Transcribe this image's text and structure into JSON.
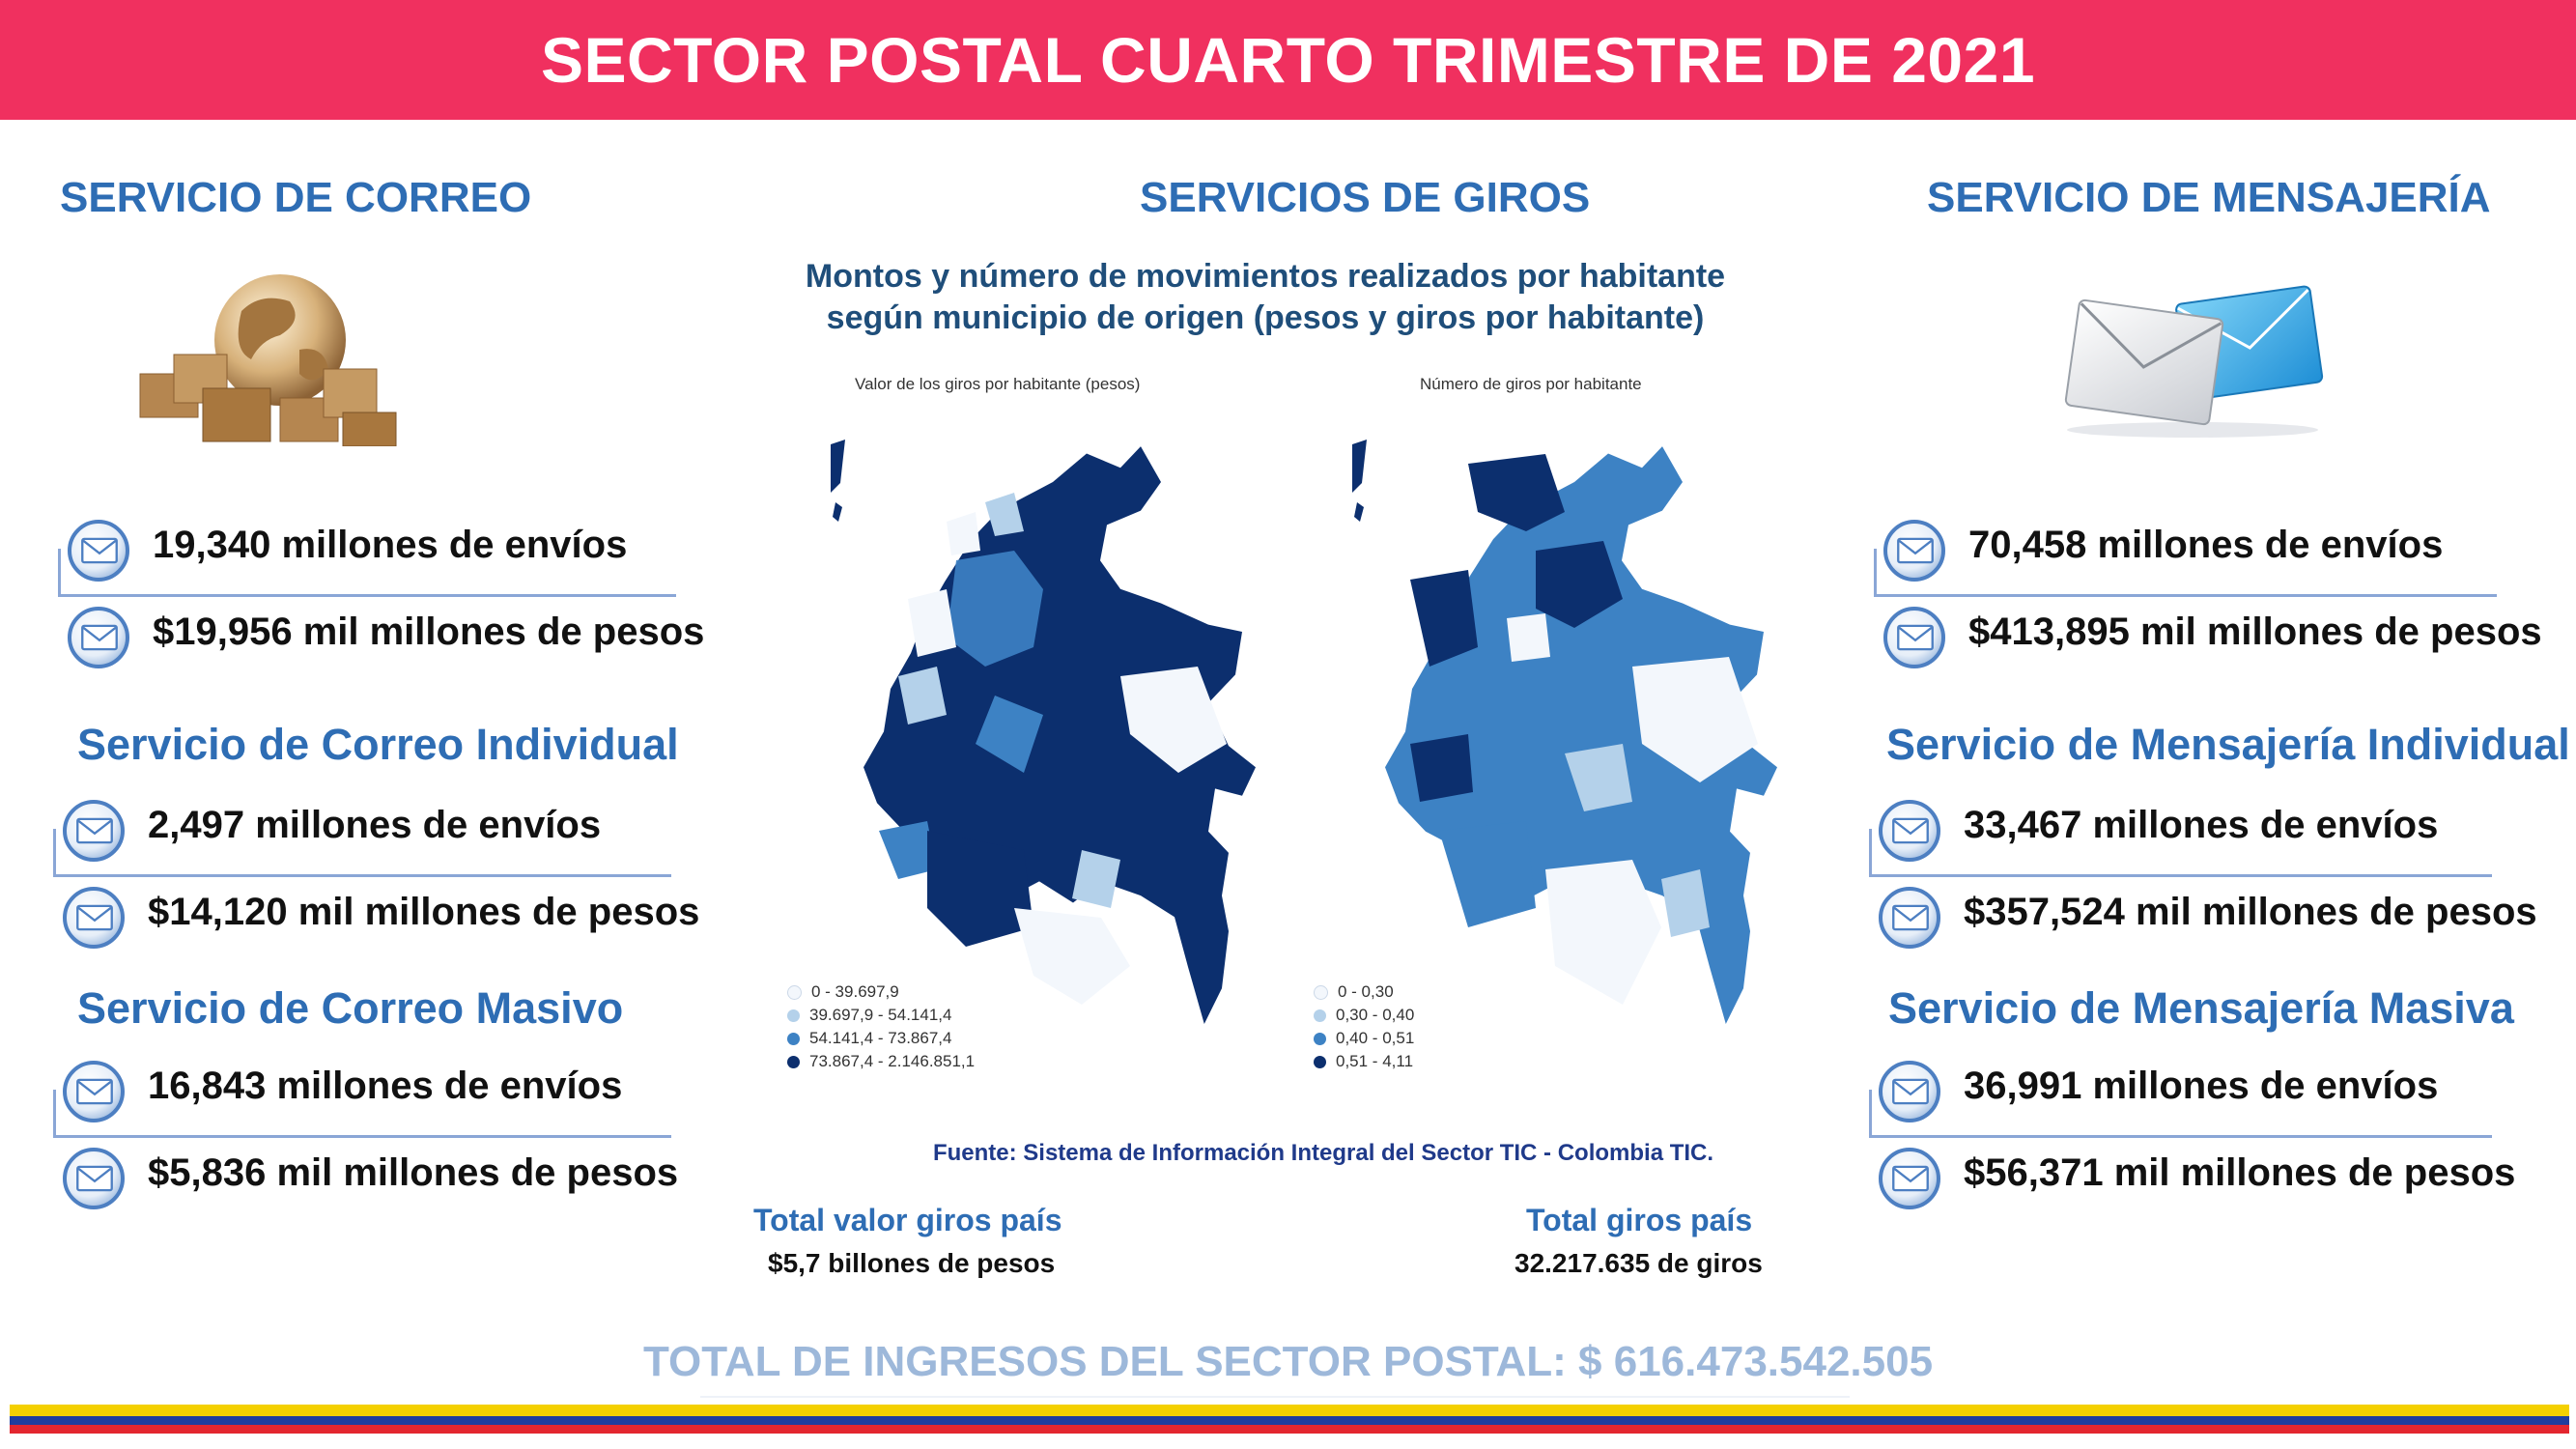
{
  "header": {
    "title": "SECTOR POSTAL CUARTO TRIMESTRE DE 2021"
  },
  "colors": {
    "banner": "#f0305f",
    "heading": "#2e6db4",
    "flag_yellow": "#f4d000",
    "flag_blue": "#1f3d9e",
    "flag_red": "#e3262f"
  },
  "correo": {
    "title": "SERVICIO DE CORREO",
    "icon": "globe-boxes-icon",
    "total": {
      "envios": "19,340 millones de envíos",
      "pesos": "$19,956 mil millones de pesos"
    },
    "individual": {
      "title": "Servicio de Correo Individual",
      "envios": "2,497 millones de envíos",
      "pesos": "$14,120 mil millones de pesos"
    },
    "masivo": {
      "title": "Servicio de Correo Masivo",
      "envios": "16,843 millones de envíos",
      "pesos": "$5,836 mil millones de pesos"
    }
  },
  "giros": {
    "title": "SERVICIOS DE GIROS",
    "chart_title_line1": "Montos y número de movimientos realizados por habitante",
    "chart_title_line2": "según municipio de origen (pesos y giros por habitante)",
    "map_left": {
      "caption": "Valor de los giros por habitante (pesos)",
      "legend": [
        "0 - 39.697,9",
        "39.697,9 - 54.141,4",
        "54.141,4 - 73.867,4",
        "73.867,4 - 2.146.851,1"
      ]
    },
    "map_right": {
      "caption": "Número de giros por habitante",
      "legend": [
        "0 - 0,30",
        "0,30 - 0,40",
        "0,40 - 0,51",
        "0,51 - 4,11"
      ]
    },
    "legend_colors": [
      "#f3f7fc",
      "#b4d1ea",
      "#3d82c4",
      "#0c2f6e"
    ],
    "source": "Fuente: Sistema de Información Integral del Sector TIC - Colombia TIC.",
    "total_valor_label": "Total valor giros país",
    "total_valor": "$5,7 billones de pesos",
    "total_giros_label": "Total giros país",
    "total_giros": "32.217.635 de giros"
  },
  "mensajeria": {
    "title": "SERVICIO DE MENSAJERÍA",
    "icon": "envelopes-icon",
    "total": {
      "envios": "70,458 millones de envíos",
      "pesos": "$413,895 mil millones de pesos"
    },
    "individual": {
      "title": "Servicio de Mensajería Individual",
      "envios": "33,467 millones de envíos",
      "pesos": "$357,524 mil millones de pesos"
    },
    "masiva": {
      "title": "Servicio de Mensajería Masiva",
      "envios": "36,991 millones de envíos",
      "pesos": "$56,371 mil millones de pesos"
    }
  },
  "footer": {
    "total": "TOTAL DE INGRESOS DEL SECTOR POSTAL: $ 616.473.542.505"
  }
}
